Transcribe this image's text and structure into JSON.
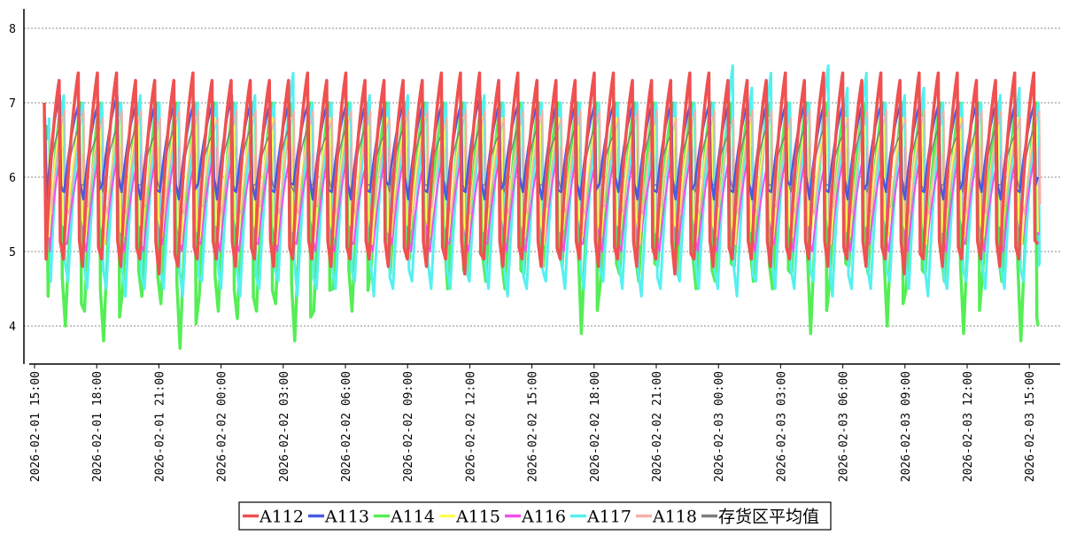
{
  "chart_data": {
    "type": "line",
    "title": "",
    "xlabel": "",
    "ylabel": "",
    "ylim": [
      3.5,
      8.25
    ],
    "y_ticks": [
      4,
      5,
      6,
      7,
      8
    ],
    "grid": "horizontal dashed",
    "legend_position": "bottom-center",
    "x_tick_labels": [
      "2026-02-01  15:00",
      "2026-02-01  18:00",
      "2026-02-01  21:00",
      "2026-02-02  00:00",
      "2026-02-02  03:00",
      "2026-02-02  06:00",
      "2026-02-02  09:00",
      "2026-02-02  12:00",
      "2026-02-02  15:00",
      "2026-02-02  18:00",
      "2026-02-02  21:00",
      "2026-02-03  00:00",
      "2026-02-03  03:00",
      "2026-02-03  06:00",
      "2026-02-03  09:00",
      "2026-02-03  12:00",
      "2026-02-03  15:00"
    ],
    "cycle_count": 52,
    "series": [
      {
        "name": "A112",
        "color": "#f05050",
        "low": 4.85,
        "high": 7.35,
        "width": 3.5,
        "phase": 0.0,
        "low_values": [
          4.9,
          4.9,
          4.8,
          4.9,
          4.8,
          4.9,
          4.7,
          4.8,
          4.9,
          4.9,
          4.8,
          4.9,
          4.8,
          4.9,
          4.9,
          4.8,
          4.9,
          4.9,
          4.8,
          4.9,
          4.8,
          4.9,
          4.7,
          4.9,
          4.8,
          4.9,
          4.8,
          4.9,
          4.9,
          4.8,
          4.9,
          4.8,
          4.9,
          4.7,
          4.9,
          4.8,
          4.9,
          4.9,
          4.8,
          4.9,
          4.9,
          4.8,
          4.9,
          4.8,
          4.9,
          4.7,
          4.9,
          4.8,
          4.9,
          4.9,
          4.8,
          4.9
        ],
        "high_values": [
          7.3,
          7.4,
          7.4,
          7.4,
          7.3,
          7.3,
          7.3,
          7.4,
          7.3,
          7.3,
          7.3,
          7.3,
          7.3,
          7.4,
          7.3,
          7.4,
          7.3,
          7.3,
          7.3,
          7.3,
          7.4,
          7.4,
          7.4,
          7.3,
          7.4,
          7.3,
          7.3,
          7.3,
          7.4,
          7.4,
          7.3,
          7.3,
          7.3,
          7.4,
          7.4,
          7.3,
          7.3,
          7.3,
          7.4,
          7.3,
          7.4,
          7.4,
          7.3,
          7.4,
          7.3,
          7.4,
          7.4,
          7.4,
          7.3,
          7.3,
          7.4,
          7.4
        ]
      },
      {
        "name": "A113",
        "color": "#4a5be0",
        "low": 5.7,
        "high": 7.05,
        "width": 2.5,
        "phase": 0.12,
        "low_values": [
          5.7,
          5.8,
          5.7,
          5.9,
          5.8,
          5.7,
          5.8,
          5.7,
          5.9,
          5.7,
          5.8,
          5.7,
          5.8,
          5.9,
          5.7,
          5.8,
          5.7,
          5.8,
          5.9,
          5.7,
          5.8,
          5.7,
          5.8,
          5.7,
          5.9,
          5.8,
          5.7,
          5.8,
          5.7,
          5.9,
          5.8,
          5.7,
          5.8,
          5.7,
          5.9,
          5.7,
          5.8,
          5.7,
          5.8,
          5.9,
          5.7,
          5.8,
          5.7,
          5.9,
          5.8,
          5.7,
          5.8,
          5.7,
          5.9,
          5.8,
          5.7,
          5.8
        ],
        "high_values": [
          7.1,
          7.0,
          7.0,
          7.1,
          7.0,
          7.0,
          7.0,
          7.0,
          7.0,
          7.1,
          7.0,
          7.0,
          7.0,
          7.0,
          7.0,
          7.0,
          7.0,
          7.0,
          7.0,
          7.0,
          7.0,
          7.0,
          7.1,
          7.0,
          7.0,
          7.0,
          7.0,
          7.0,
          7.0,
          7.0,
          7.0,
          7.0,
          7.0,
          7.0,
          7.0,
          7.0,
          7.0,
          7.0,
          7.0,
          7.0,
          7.0,
          7.0,
          7.0,
          7.0,
          7.0,
          7.0,
          7.0,
          7.0,
          7.0,
          7.0,
          7.0,
          7.0
        ]
      },
      {
        "name": "A114",
        "color": "#55ee55",
        "low": 4.2,
        "high": 7.0,
        "width": 3.5,
        "phase": 0.3,
        "low_values": [
          4.4,
          4.0,
          4.2,
          3.8,
          4.5,
          4.4,
          4.3,
          3.7,
          4.4,
          4.2,
          4.1,
          4.2,
          4.3,
          3.8,
          4.2,
          4.5,
          4.2,
          4.8,
          4.7,
          4.9,
          5.0,
          4.5,
          4.7,
          4.6,
          4.5,
          4.7,
          4.8,
          4.8,
          3.9,
          4.6,
          4.7,
          4.6,
          4.8,
          4.7,
          4.5,
          4.6,
          4.8,
          4.6,
          4.5,
          4.7,
          3.9,
          4.6,
          4.8,
          4.7,
          4.0,
          4.5,
          4.7,
          4.6,
          3.9,
          4.7,
          4.6,
          3.8
        ],
        "high_values": [
          7.0,
          7.0,
          7.0,
          7.0,
          6.9,
          7.0,
          7.0,
          7.0,
          7.0,
          7.0,
          7.0,
          7.0,
          7.0,
          7.0,
          7.0,
          7.0,
          7.0,
          7.0,
          7.0,
          7.0,
          7.0,
          7.0,
          7.0,
          7.0,
          7.0,
          7.0,
          7.0,
          7.0,
          7.0,
          7.0,
          7.0,
          7.0,
          7.0,
          7.0,
          7.0,
          7.0,
          7.0,
          7.0,
          7.0,
          7.0,
          7.0,
          7.0,
          7.0,
          7.0,
          7.0,
          7.0,
          7.0,
          7.0,
          7.0,
          7.0,
          7.0,
          7.0
        ]
      },
      {
        "name": "A115",
        "color": "#ffff55",
        "low": 5.2,
        "high": 6.8,
        "width": 2.0,
        "phase": 0.45,
        "low_values": [
          5.2,
          5.3,
          5.2,
          5.1,
          5.2,
          5.3,
          5.2,
          5.1,
          5.2,
          5.3,
          5.2,
          5.2,
          5.1,
          5.3,
          5.2,
          5.2,
          5.3,
          5.1,
          5.2,
          5.3,
          5.2,
          5.2,
          5.1,
          5.3,
          5.2,
          5.2,
          5.1,
          5.3,
          5.2,
          5.2,
          5.3,
          5.1,
          5.2,
          5.3,
          5.2,
          5.2,
          5.1,
          5.3,
          5.2,
          5.2,
          5.3,
          5.1,
          5.2,
          5.3,
          5.2,
          5.2,
          5.1,
          5.3,
          5.2,
          5.2,
          5.3,
          5.1
        ],
        "high_values": [
          6.8,
          6.8,
          6.7,
          6.8,
          6.8,
          6.7,
          6.8,
          6.8,
          6.8,
          6.7,
          6.8,
          6.8,
          6.8,
          6.7,
          6.8,
          6.8,
          6.7,
          6.8,
          6.8,
          6.8,
          6.7,
          6.8,
          6.8,
          6.8,
          6.7,
          6.8,
          6.8,
          6.7,
          6.8,
          6.8,
          6.8,
          6.7,
          6.8,
          6.8,
          6.8,
          6.7,
          6.8,
          6.8,
          6.7,
          6.8,
          6.8,
          6.8,
          6.7,
          6.8,
          6.8,
          6.8,
          6.7,
          6.8,
          6.8,
          6.7,
          6.8,
          6.8
        ]
      },
      {
        "name": "A116",
        "color": "#f050f0",
        "low": 5.05,
        "high": 6.4,
        "width": 2.0,
        "phase": 0.55,
        "low_values": [
          5.0,
          5.1,
          5.0,
          5.1,
          5.0,
          5.0,
          5.1,
          5.0,
          5.1,
          5.0,
          5.0,
          5.1,
          5.0,
          5.1,
          5.0,
          5.0,
          5.1,
          5.0,
          5.1,
          5.0,
          5.0,
          5.1,
          5.0,
          5.1,
          5.0,
          5.0,
          5.1,
          5.0,
          5.1,
          5.0,
          5.0,
          5.1,
          5.0,
          5.1,
          5.0,
          5.0,
          5.1,
          5.0,
          5.1,
          5.0,
          5.0,
          5.1,
          5.0,
          5.1,
          5.0,
          5.0,
          5.1,
          5.0,
          5.1,
          5.0,
          5.0,
          5.1
        ],
        "high_values": [
          6.4,
          6.3,
          6.4,
          6.4,
          6.3,
          6.4,
          6.4,
          6.3,
          6.4,
          6.4,
          6.3,
          6.4,
          6.4,
          6.3,
          6.4,
          6.4,
          6.3,
          6.4,
          6.4,
          6.3,
          6.4,
          6.4,
          6.3,
          6.4,
          6.4,
          6.3,
          6.4,
          6.4,
          6.3,
          6.4,
          6.4,
          6.3,
          6.4,
          6.4,
          6.3,
          6.4,
          6.4,
          6.3,
          6.4,
          6.4,
          6.3,
          6.4,
          6.4,
          6.3,
          6.4,
          6.4,
          6.3,
          6.4,
          6.4,
          6.3,
          6.4,
          6.4
        ]
      },
      {
        "name": "A117",
        "color": "#55f0f0",
        "low": 4.55,
        "high": 7.05,
        "width": 3.0,
        "phase": 0.7,
        "low_values": [
          4.6,
          4.6,
          4.5,
          4.5,
          4.4,
          4.5,
          4.5,
          4.4,
          4.6,
          4.5,
          4.4,
          4.5,
          4.6,
          4.4,
          4.5,
          4.5,
          4.6,
          4.4,
          4.5,
          4.6,
          4.5,
          4.5,
          4.6,
          4.5,
          4.4,
          4.5,
          4.6,
          4.5,
          4.5,
          4.6,
          4.5,
          4.4,
          4.5,
          4.6,
          4.5,
          4.5,
          4.4,
          4.6,
          4.5,
          4.5,
          4.6,
          4.4,
          4.5,
          4.5,
          4.6,
          4.5,
          4.4,
          4.5,
          4.6,
          4.5,
          4.5,
          4.6
        ],
        "high_values": [
          7.1,
          7.0,
          7.0,
          7.0,
          7.1,
          7.0,
          7.0,
          7.0,
          7.0,
          7.0,
          7.1,
          7.0,
          7.4,
          7.0,
          7.0,
          7.0,
          7.1,
          7.0,
          7.1,
          7.0,
          7.0,
          7.0,
          7.1,
          7.0,
          7.0,
          7.0,
          7.0,
          7.0,
          7.0,
          7.0,
          7.0,
          7.0,
          7.0,
          7.0,
          7.0,
          7.5,
          7.2,
          7.4,
          7.0,
          7.0,
          7.5,
          7.2,
          7.4,
          7.0,
          7.1,
          7.2,
          7.0,
          7.0,
          7.0,
          7.1,
          7.2,
          7.0
        ]
      },
      {
        "name": "A118",
        "color": "#f5b0a8",
        "low": 5.5,
        "high": 6.9,
        "width": 1.5,
        "phase": 0.85,
        "low_values": [
          5.5,
          5.5,
          5.6,
          5.5,
          5.5,
          5.6,
          5.5,
          5.5,
          5.6,
          5.5,
          5.5,
          5.6,
          5.5,
          5.5,
          5.6,
          5.5,
          5.5,
          5.6,
          5.5,
          5.5,
          5.6,
          5.5,
          5.5,
          5.6,
          5.5,
          5.5,
          5.6,
          5.5,
          5.5,
          5.6,
          5.5,
          5.5,
          5.6,
          5.5,
          5.5,
          5.6,
          5.5,
          5.5,
          5.6,
          5.5,
          5.5,
          5.6,
          5.5,
          5.5,
          5.6,
          5.5,
          5.5,
          5.6,
          5.5,
          5.5,
          5.6,
          5.5
        ],
        "high_values": [
          6.9,
          6.9,
          6.8,
          6.9,
          6.9,
          6.8,
          6.9,
          6.9,
          6.8,
          6.9,
          6.9,
          6.8,
          6.9,
          6.9,
          6.8,
          6.9,
          6.9,
          6.8,
          6.9,
          6.9,
          6.8,
          6.9,
          6.9,
          6.8,
          6.9,
          6.9,
          6.8,
          6.9,
          6.9,
          6.8,
          6.9,
          6.9,
          6.8,
          6.9,
          6.9,
          6.8,
          6.9,
          6.9,
          6.8,
          6.9,
          6.9,
          6.8,
          6.9,
          6.9,
          6.8,
          6.9,
          6.9,
          6.8,
          6.9,
          6.9,
          6.8,
          6.9
        ]
      },
      {
        "name": "存货区平均值",
        "color": "#7f7f7f",
        "low": 5.8,
        "high": 6.7,
        "width": 1.5,
        "phase": 0.2,
        "low_values": [
          5.8,
          5.8,
          5.9,
          5.8,
          5.8,
          5.9,
          5.8,
          5.8,
          5.9,
          5.8,
          5.8,
          5.9,
          5.8,
          5.8,
          5.9,
          5.8,
          5.8,
          5.9,
          5.8,
          5.8,
          5.9,
          5.8,
          5.8,
          5.9,
          5.8,
          5.8,
          5.9,
          5.8,
          5.8,
          5.9,
          5.8,
          5.8,
          5.9,
          5.8,
          5.8,
          5.9,
          5.8,
          5.8,
          5.9,
          5.8,
          5.8,
          5.9,
          5.8,
          5.8,
          5.9,
          5.8,
          5.8,
          5.9,
          5.8,
          5.8,
          5.9,
          5.8
        ],
        "high_values": [
          6.7,
          6.7,
          6.6,
          6.7,
          6.7,
          6.6,
          6.7,
          6.7,
          6.6,
          6.7,
          6.7,
          6.6,
          6.7,
          6.7,
          6.6,
          6.7,
          6.7,
          6.6,
          6.7,
          6.7,
          6.6,
          6.7,
          6.7,
          6.6,
          6.7,
          6.7,
          6.6,
          6.7,
          6.7,
          6.6,
          6.7,
          6.7,
          6.6,
          6.7,
          6.7,
          6.6,
          6.7,
          6.7,
          6.6,
          6.7,
          6.7,
          6.6,
          6.7,
          6.7,
          6.6,
          6.7,
          6.7,
          6.6,
          6.7,
          6.7,
          6.6,
          6.7
        ]
      }
    ],
    "draw_order": [
      "A114",
      "A117",
      "A116",
      "A115",
      "A118",
      "存货区平均值",
      "A113",
      "A112"
    ]
  }
}
